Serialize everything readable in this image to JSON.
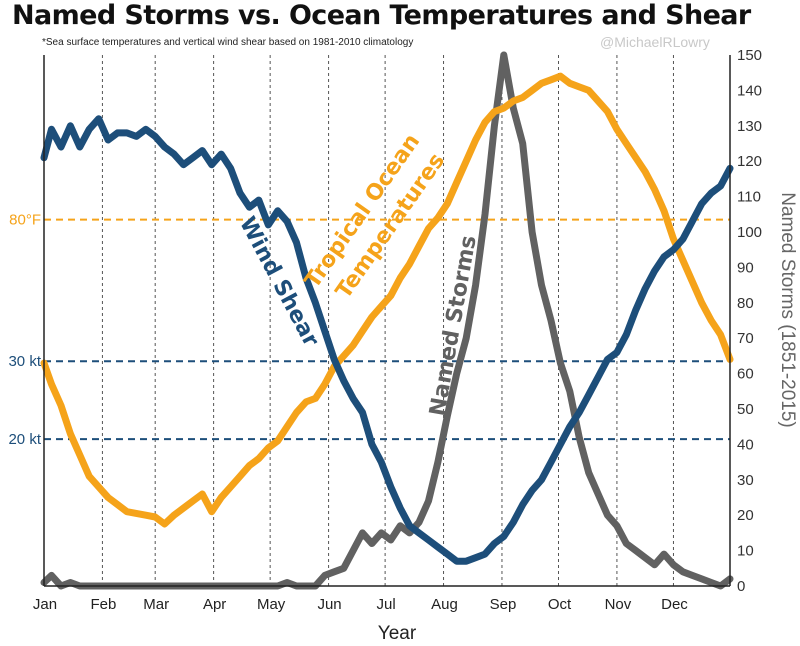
{
  "chart_data": {
    "type": "line",
    "title": "Named Storms vs. Ocean Temperatures and Shear",
    "subtitle": "*Sea surface temperatures and vertical wind shear based on 1981-2010 climatology",
    "watermark": "@MichaelRLowry",
    "xlabel": "Year",
    "ylabel_right": "Named Storms (1851-2015)",
    "x_ticks": [
      "Jan",
      "Feb",
      "Mar",
      "Apr",
      "May",
      "Jun",
      "Jul",
      "Aug",
      "Sep",
      "Oct",
      "Nov",
      "Dec"
    ],
    "y_right_ticks": [
      0,
      10,
      20,
      30,
      40,
      50,
      60,
      70,
      80,
      90,
      100,
      110,
      120,
      130,
      140,
      150
    ],
    "ylim_right": [
      0,
      150
    ],
    "grid": "vertical dotted lines at month boundaries",
    "reference_lines": [
      {
        "label": "80°F",
        "color": "#f5a31a",
        "y": 103.5
      },
      {
        "label": "30 kt",
        "color": "#1d4e7a",
        "y": 63.5
      },
      {
        "label": "20 kt",
        "color": "#1d4e7a",
        "y": 41.5
      }
    ],
    "series": [
      {
        "name": "Tropical Ocean Temperatures",
        "color": "#f5a31a",
        "x": [
          1,
          5,
          10,
          15,
          20,
          25,
          30,
          35,
          40,
          45,
          50,
          55,
          60,
          65,
          70,
          75,
          80,
          85,
          90,
          95,
          100,
          105,
          110,
          115,
          120,
          125,
          130,
          135,
          140,
          145,
          150,
          155,
          160,
          165,
          170,
          175,
          180,
          185,
          190,
          195,
          200,
          205,
          210,
          215,
          220,
          225,
          230,
          235,
          240,
          245,
          250,
          255,
          260,
          265,
          270,
          275,
          280,
          285,
          290,
          295,
          300,
          305,
          310,
          315,
          320,
          325,
          330,
          335,
          340,
          345,
          350,
          355,
          360,
          365
        ],
        "values": [
          63,
          57,
          51,
          43,
          37,
          31,
          28,
          25,
          23,
          21,
          20.5,
          20,
          19.5,
          17.5,
          20,
          22,
          24,
          26,
          21,
          25,
          28,
          31,
          34,
          36,
          39,
          41,
          45,
          49,
          52,
          53,
          57,
          62,
          65,
          68,
          72,
          76,
          79,
          82,
          87,
          91,
          96,
          101,
          104,
          108,
          114,
          120,
          126,
          131,
          134,
          135,
          137,
          138,
          140,
          142,
          143,
          144,
          142,
          141,
          140,
          137,
          134,
          129,
          125,
          121,
          117,
          112,
          106,
          98,
          92,
          86,
          80,
          75,
          71,
          64
        ]
      },
      {
        "name": "Wind Shear",
        "color": "#1d4e7a",
        "x": [
          1,
          5,
          10,
          15,
          20,
          25,
          30,
          35,
          40,
          45,
          50,
          55,
          60,
          65,
          70,
          75,
          80,
          85,
          90,
          95,
          100,
          105,
          110,
          115,
          120,
          125,
          130,
          135,
          140,
          145,
          150,
          155,
          160,
          165,
          170,
          175,
          180,
          185,
          190,
          195,
          200,
          205,
          210,
          215,
          220,
          225,
          230,
          235,
          240,
          245,
          250,
          255,
          260,
          265,
          270,
          275,
          280,
          285,
          290,
          295,
          300,
          305,
          310,
          315,
          320,
          325,
          330,
          335,
          340,
          345,
          350,
          355,
          360,
          365
        ],
        "values": [
          121,
          129,
          124,
          130,
          124,
          129,
          132,
          126,
          128,
          128,
          127,
          129,
          127,
          124,
          122,
          119,
          121,
          123,
          119,
          122,
          118,
          111,
          107,
          109,
          102,
          106,
          103,
          97,
          87,
          80,
          72,
          64,
          58,
          53,
          49,
          40,
          35,
          28,
          22,
          17,
          15,
          13,
          11,
          9,
          7,
          7,
          8,
          9,
          12,
          14,
          18,
          23,
          27,
          30,
          35,
          40,
          45,
          49,
          54,
          59,
          64,
          66,
          71,
          78,
          84,
          89,
          93,
          95,
          98,
          103,
          108,
          111,
          113,
          118
        ]
      },
      {
        "name": "Named Storms",
        "color": "#616161",
        "x": [
          1,
          5,
          10,
          15,
          20,
          25,
          30,
          35,
          40,
          45,
          50,
          55,
          60,
          65,
          70,
          75,
          80,
          85,
          90,
          95,
          100,
          105,
          110,
          115,
          120,
          125,
          130,
          135,
          140,
          145,
          150,
          155,
          160,
          165,
          170,
          175,
          180,
          185,
          190,
          195,
          200,
          205,
          210,
          215,
          220,
          225,
          230,
          235,
          240,
          245,
          250,
          255,
          260,
          265,
          270,
          275,
          280,
          285,
          290,
          295,
          300,
          305,
          310,
          315,
          320,
          325,
          330,
          335,
          340,
          345,
          350,
          355,
          360,
          365
        ],
        "values": [
          1,
          3,
          0,
          1,
          0,
          0,
          0,
          0,
          0,
          0,
          0,
          0,
          0,
          0,
          0,
          0,
          0,
          0,
          0,
          0,
          0,
          0,
          0,
          0,
          0,
          0,
          1,
          0,
          0,
          0,
          3,
          4,
          5,
          10,
          15,
          12,
          15,
          13,
          17,
          15,
          18,
          24,
          35,
          48,
          60,
          70,
          85,
          105,
          130,
          150,
          135,
          125,
          100,
          85,
          75,
          63,
          55,
          42,
          32,
          26,
          20,
          17,
          12,
          10,
          8,
          6,
          9,
          6,
          4,
          3,
          2,
          1,
          0,
          2
        ]
      }
    ],
    "curve_labels": {
      "temperature": [
        "Tropical Ocean",
        "Temperatures"
      ],
      "shear": "Wind Shear",
      "storms": "Named Storms"
    }
  }
}
